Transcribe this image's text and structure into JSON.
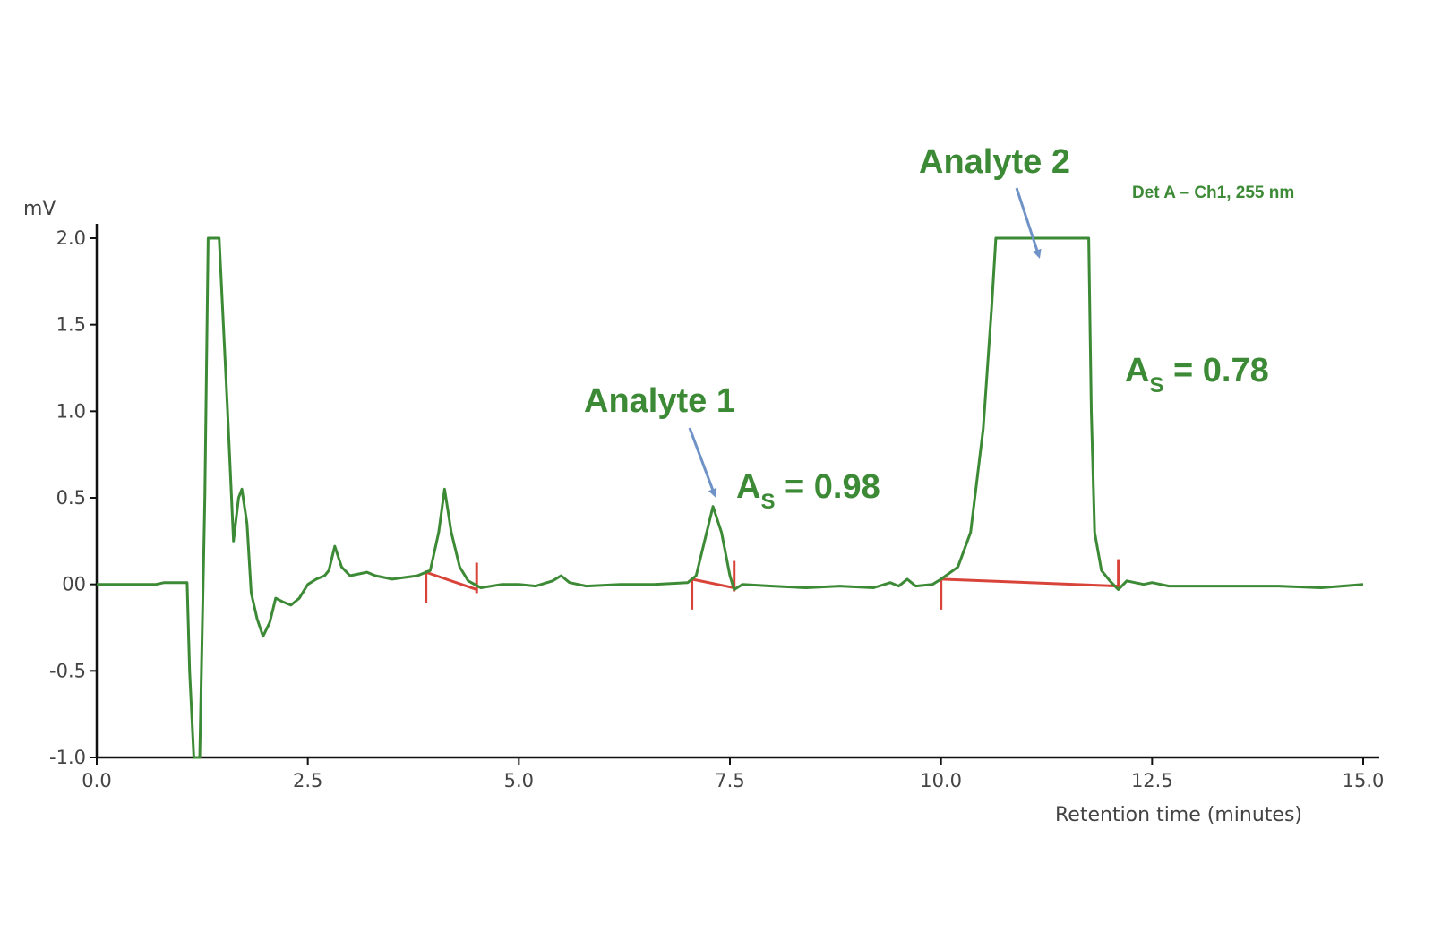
{
  "chart_data": {
    "type": "line",
    "xlabel": "Retention time (minutes)",
    "ylabel": "mV",
    "xlim": [
      0,
      15
    ],
    "ylim": [
      -1.0,
      2.0
    ],
    "x_ticks": [
      "0.0",
      "2.5",
      "5.0",
      "7.5",
      "10.0",
      "12.5",
      "15.0"
    ],
    "y_ticks": [
      "2.0",
      "1.5",
      "1.0",
      "0.5",
      "00",
      "-0.5",
      "-1.0"
    ],
    "detector_label": "Det A – Ch1, 255 nm",
    "colors": {
      "trace": "#3d8a36",
      "baseline": "#d9443a",
      "arrow": "#6f93c7",
      "annotation": "#3d8a36"
    },
    "series": [
      {
        "values": [
          [
            0.0,
            0.0
          ],
          [
            0.7,
            0.0
          ],
          [
            0.8,
            0.01
          ],
          [
            1.07,
            0.01
          ],
          [
            1.1,
            -0.5
          ],
          [
            1.15,
            -1.0
          ],
          [
            1.22,
            -1.0
          ],
          [
            1.28,
            0.5
          ],
          [
            1.32,
            2.0
          ],
          [
            1.45,
            2.0
          ],
          [
            1.55,
            1.0
          ],
          [
            1.62,
            0.25
          ],
          [
            1.68,
            0.5
          ],
          [
            1.72,
            0.55
          ],
          [
            1.78,
            0.35
          ],
          [
            1.83,
            -0.05
          ],
          [
            1.9,
            -0.2
          ],
          [
            1.97,
            -0.3
          ],
          [
            2.05,
            -0.22
          ],
          [
            2.12,
            -0.08
          ],
          [
            2.2,
            -0.1
          ],
          [
            2.3,
            -0.12
          ],
          [
            2.4,
            -0.08
          ],
          [
            2.5,
            0.0
          ],
          [
            2.6,
            0.03
          ],
          [
            2.7,
            0.05
          ],
          [
            2.75,
            0.08
          ],
          [
            2.82,
            0.22
          ],
          [
            2.9,
            0.1
          ],
          [
            3.0,
            0.05
          ],
          [
            3.1,
            0.06
          ],
          [
            3.2,
            0.07
          ],
          [
            3.3,
            0.05
          ],
          [
            3.5,
            0.03
          ],
          [
            3.8,
            0.05
          ],
          [
            3.95,
            0.08
          ],
          [
            4.05,
            0.3
          ],
          [
            4.12,
            0.55
          ],
          [
            4.2,
            0.3
          ],
          [
            4.3,
            0.1
          ],
          [
            4.4,
            0.02
          ],
          [
            4.55,
            -0.02
          ],
          [
            4.8,
            0.0
          ],
          [
            5.0,
            0.0
          ],
          [
            5.2,
            -0.01
          ],
          [
            5.4,
            0.02
          ],
          [
            5.5,
            0.05
          ],
          [
            5.6,
            0.01
          ],
          [
            5.8,
            -0.01
          ],
          [
            6.2,
            0.0
          ],
          [
            6.6,
            0.0
          ],
          [
            7.0,
            0.01
          ],
          [
            7.1,
            0.05
          ],
          [
            7.2,
            0.25
          ],
          [
            7.3,
            0.45
          ],
          [
            7.4,
            0.3
          ],
          [
            7.5,
            0.05
          ],
          [
            7.55,
            -0.03
          ],
          [
            7.65,
            0.0
          ],
          [
            8.0,
            -0.01
          ],
          [
            8.4,
            -0.02
          ],
          [
            8.8,
            -0.01
          ],
          [
            9.2,
            -0.02
          ],
          [
            9.4,
            0.01
          ],
          [
            9.5,
            -0.01
          ],
          [
            9.6,
            0.03
          ],
          [
            9.7,
            -0.01
          ],
          [
            9.9,
            0.0
          ],
          [
            10.0,
            0.03
          ],
          [
            10.2,
            0.1
          ],
          [
            10.35,
            0.3
          ],
          [
            10.5,
            0.9
          ],
          [
            10.6,
            1.6
          ],
          [
            10.65,
            2.0
          ],
          [
            11.75,
            2.0
          ],
          [
            11.78,
            1.0
          ],
          [
            11.82,
            0.3
          ],
          [
            11.9,
            0.08
          ],
          [
            12.0,
            0.02
          ],
          [
            12.1,
            -0.03
          ],
          [
            12.2,
            0.02
          ],
          [
            12.4,
            0.0
          ],
          [
            12.5,
            0.01
          ],
          [
            12.7,
            -0.01
          ],
          [
            13.0,
            -0.01
          ],
          [
            13.5,
            -0.01
          ],
          [
            14.0,
            -0.01
          ],
          [
            14.5,
            -0.02
          ],
          [
            15.0,
            0.0
          ]
        ]
      }
    ],
    "integration_baselines": [
      {
        "start": [
          3.9,
          0.07
        ],
        "end": [
          4.5,
          -0.03
        ]
      },
      {
        "start": [
          7.05,
          0.03
        ],
        "end": [
          7.55,
          -0.02
        ]
      },
      {
        "start": [
          10.0,
          0.03
        ],
        "end": [
          12.1,
          -0.01
        ]
      }
    ],
    "annotations": [
      {
        "label": "Analyte 1",
        "asymmetry_label": "A",
        "asymmetry_sub": "S",
        "asymmetry_value": " = 0.98"
      },
      {
        "label": "Analyte 2",
        "asymmetry_label": "A",
        "asymmetry_sub": "S",
        "asymmetry_value": " = 0.78"
      }
    ]
  }
}
